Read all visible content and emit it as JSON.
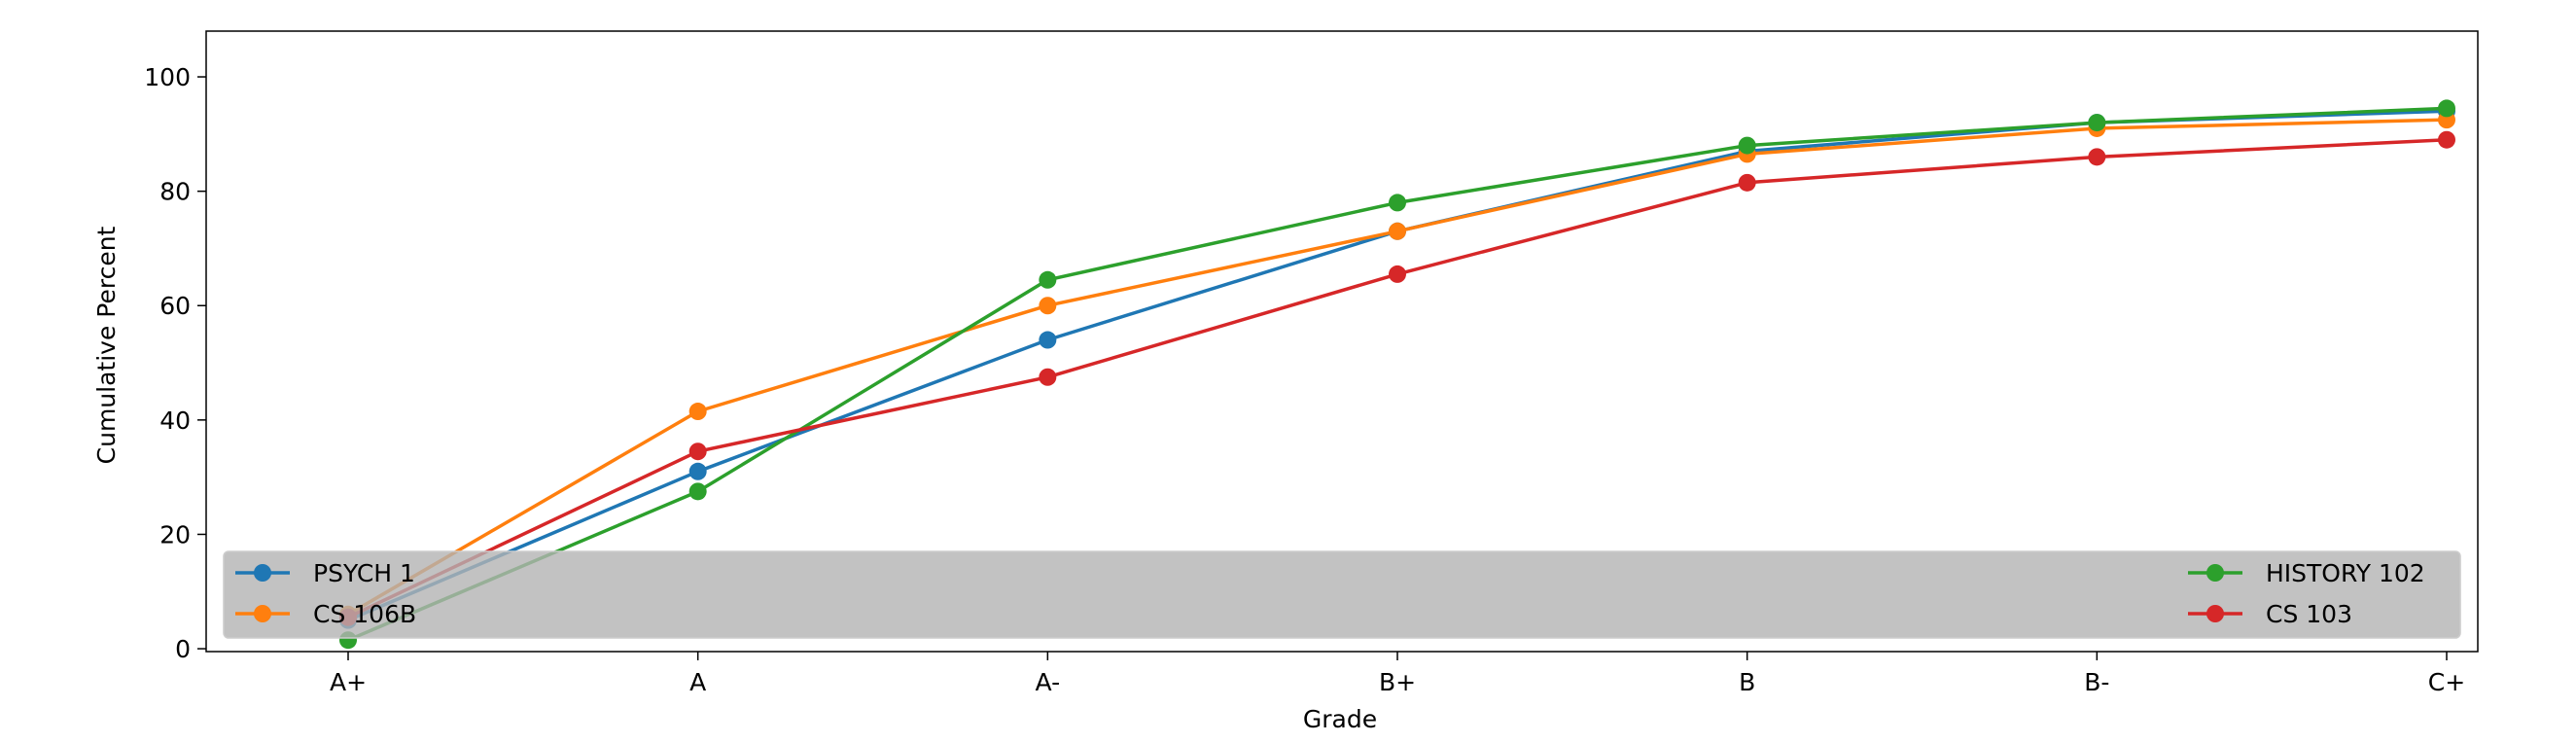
{
  "chart_data": {
    "type": "line",
    "title": "",
    "xlabel": "Grade",
    "ylabel": "Cumulative Percent",
    "categories": [
      "A+",
      "A",
      "A-",
      "B+",
      "B",
      "B-",
      "C+"
    ],
    "ylim": [
      -0.5,
      108
    ],
    "yticks": [
      0,
      20,
      40,
      60,
      80,
      100
    ],
    "grid": false,
    "legend": {
      "placement": "lower",
      "expanded": true,
      "ncol": 2,
      "facecolor": "#b3b3b3"
    },
    "series": [
      {
        "name": "PSYCH 1",
        "color": "#1f77b4",
        "marker": "circle",
        "values": [
          5,
          31,
          54,
          73,
          87,
          92,
          94
        ]
      },
      {
        "name": "CS 106B",
        "color": "#ff7f0e",
        "marker": "circle",
        "values": [
          6,
          41.5,
          60,
          73,
          86.5,
          91,
          92.5
        ]
      },
      {
        "name": "HISTORY 102",
        "color": "#2ca02c",
        "marker": "circle",
        "values": [
          1.5,
          27.5,
          64.5,
          78,
          88,
          92,
          94.5
        ]
      },
      {
        "name": "CS 103",
        "color": "#d62728",
        "marker": "circle",
        "values": [
          5.5,
          34.5,
          47.5,
          65.5,
          81.5,
          86,
          89
        ]
      }
    ]
  }
}
